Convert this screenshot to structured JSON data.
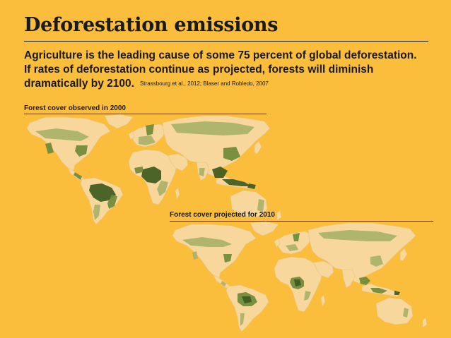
{
  "slide": {
    "title": "Deforestation emissions",
    "subtitle_lines": [
      "Agriculture is the leading cause of some 75 percent of global deforestation.",
      "If rates of deforestation continue as projected, forests will diminish",
      "dramatically by 2100."
    ],
    "source": "Strassbourg et al., 2012; Blaser and Robledo, 2007"
  },
  "maps": [
    {
      "label": "Forest cover observed in 2000",
      "year": 2000
    },
    {
      "label": "Forest cover projected for 2010",
      "year": 2010
    }
  ],
  "colors": {
    "background": "#FABD3C",
    "land": "#F7D79B",
    "forest_dense": "#3E5A1E",
    "forest_medium": "#6E8A3A",
    "forest_light": "#A9B26A",
    "text": "#1a1a1a"
  }
}
